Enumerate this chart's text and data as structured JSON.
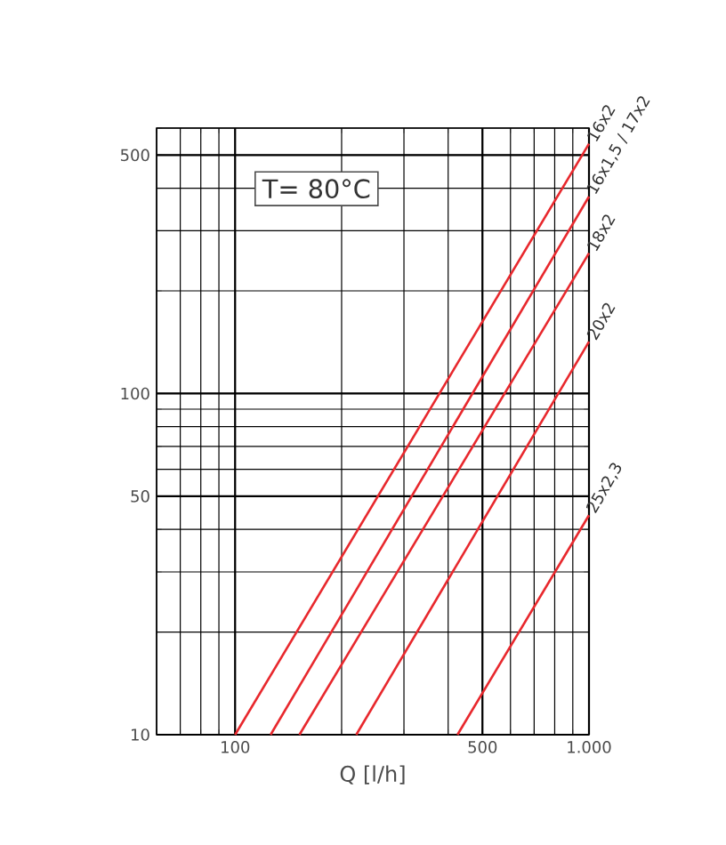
{
  "chart_data": {
    "type": "line",
    "xlabel": "Q [l/h]",
    "log": "xy",
    "grid": true,
    "marker": "none",
    "line_style": "solid",
    "xlim": [
      60,
      1000
    ],
    "ylim": [
      10,
      600
    ],
    "xticks": [
      100,
      500,
      {
        "value": 1000,
        "label": "1.000"
      }
    ],
    "yticks": [
      10,
      50,
      100,
      500
    ],
    "annotations": [
      "T= 80°C"
    ],
    "series": [
      {
        "name": "16x2",
        "color": "#e8282d",
        "x": [
          100,
          1000
        ],
        "values": [
          10,
          540
        ]
      },
      {
        "name": "16x1,5 / 17x2",
        "color": "#e8282d",
        "x": [
          126,
          1000
        ],
        "values": [
          10,
          378
        ]
      },
      {
        "name": "18x2",
        "color": "#e8282d",
        "x": [
          152,
          1000
        ],
        "values": [
          10,
          258
        ]
      },
      {
        "name": "20x2",
        "color": "#e8282d",
        "x": [
          220,
          1000
        ],
        "values": [
          10,
          142
        ]
      },
      {
        "name": "25x2,3",
        "color": "#e8282d",
        "x": [
          425,
          1000
        ],
        "values": [
          10,
          44
        ]
      }
    ]
  }
}
